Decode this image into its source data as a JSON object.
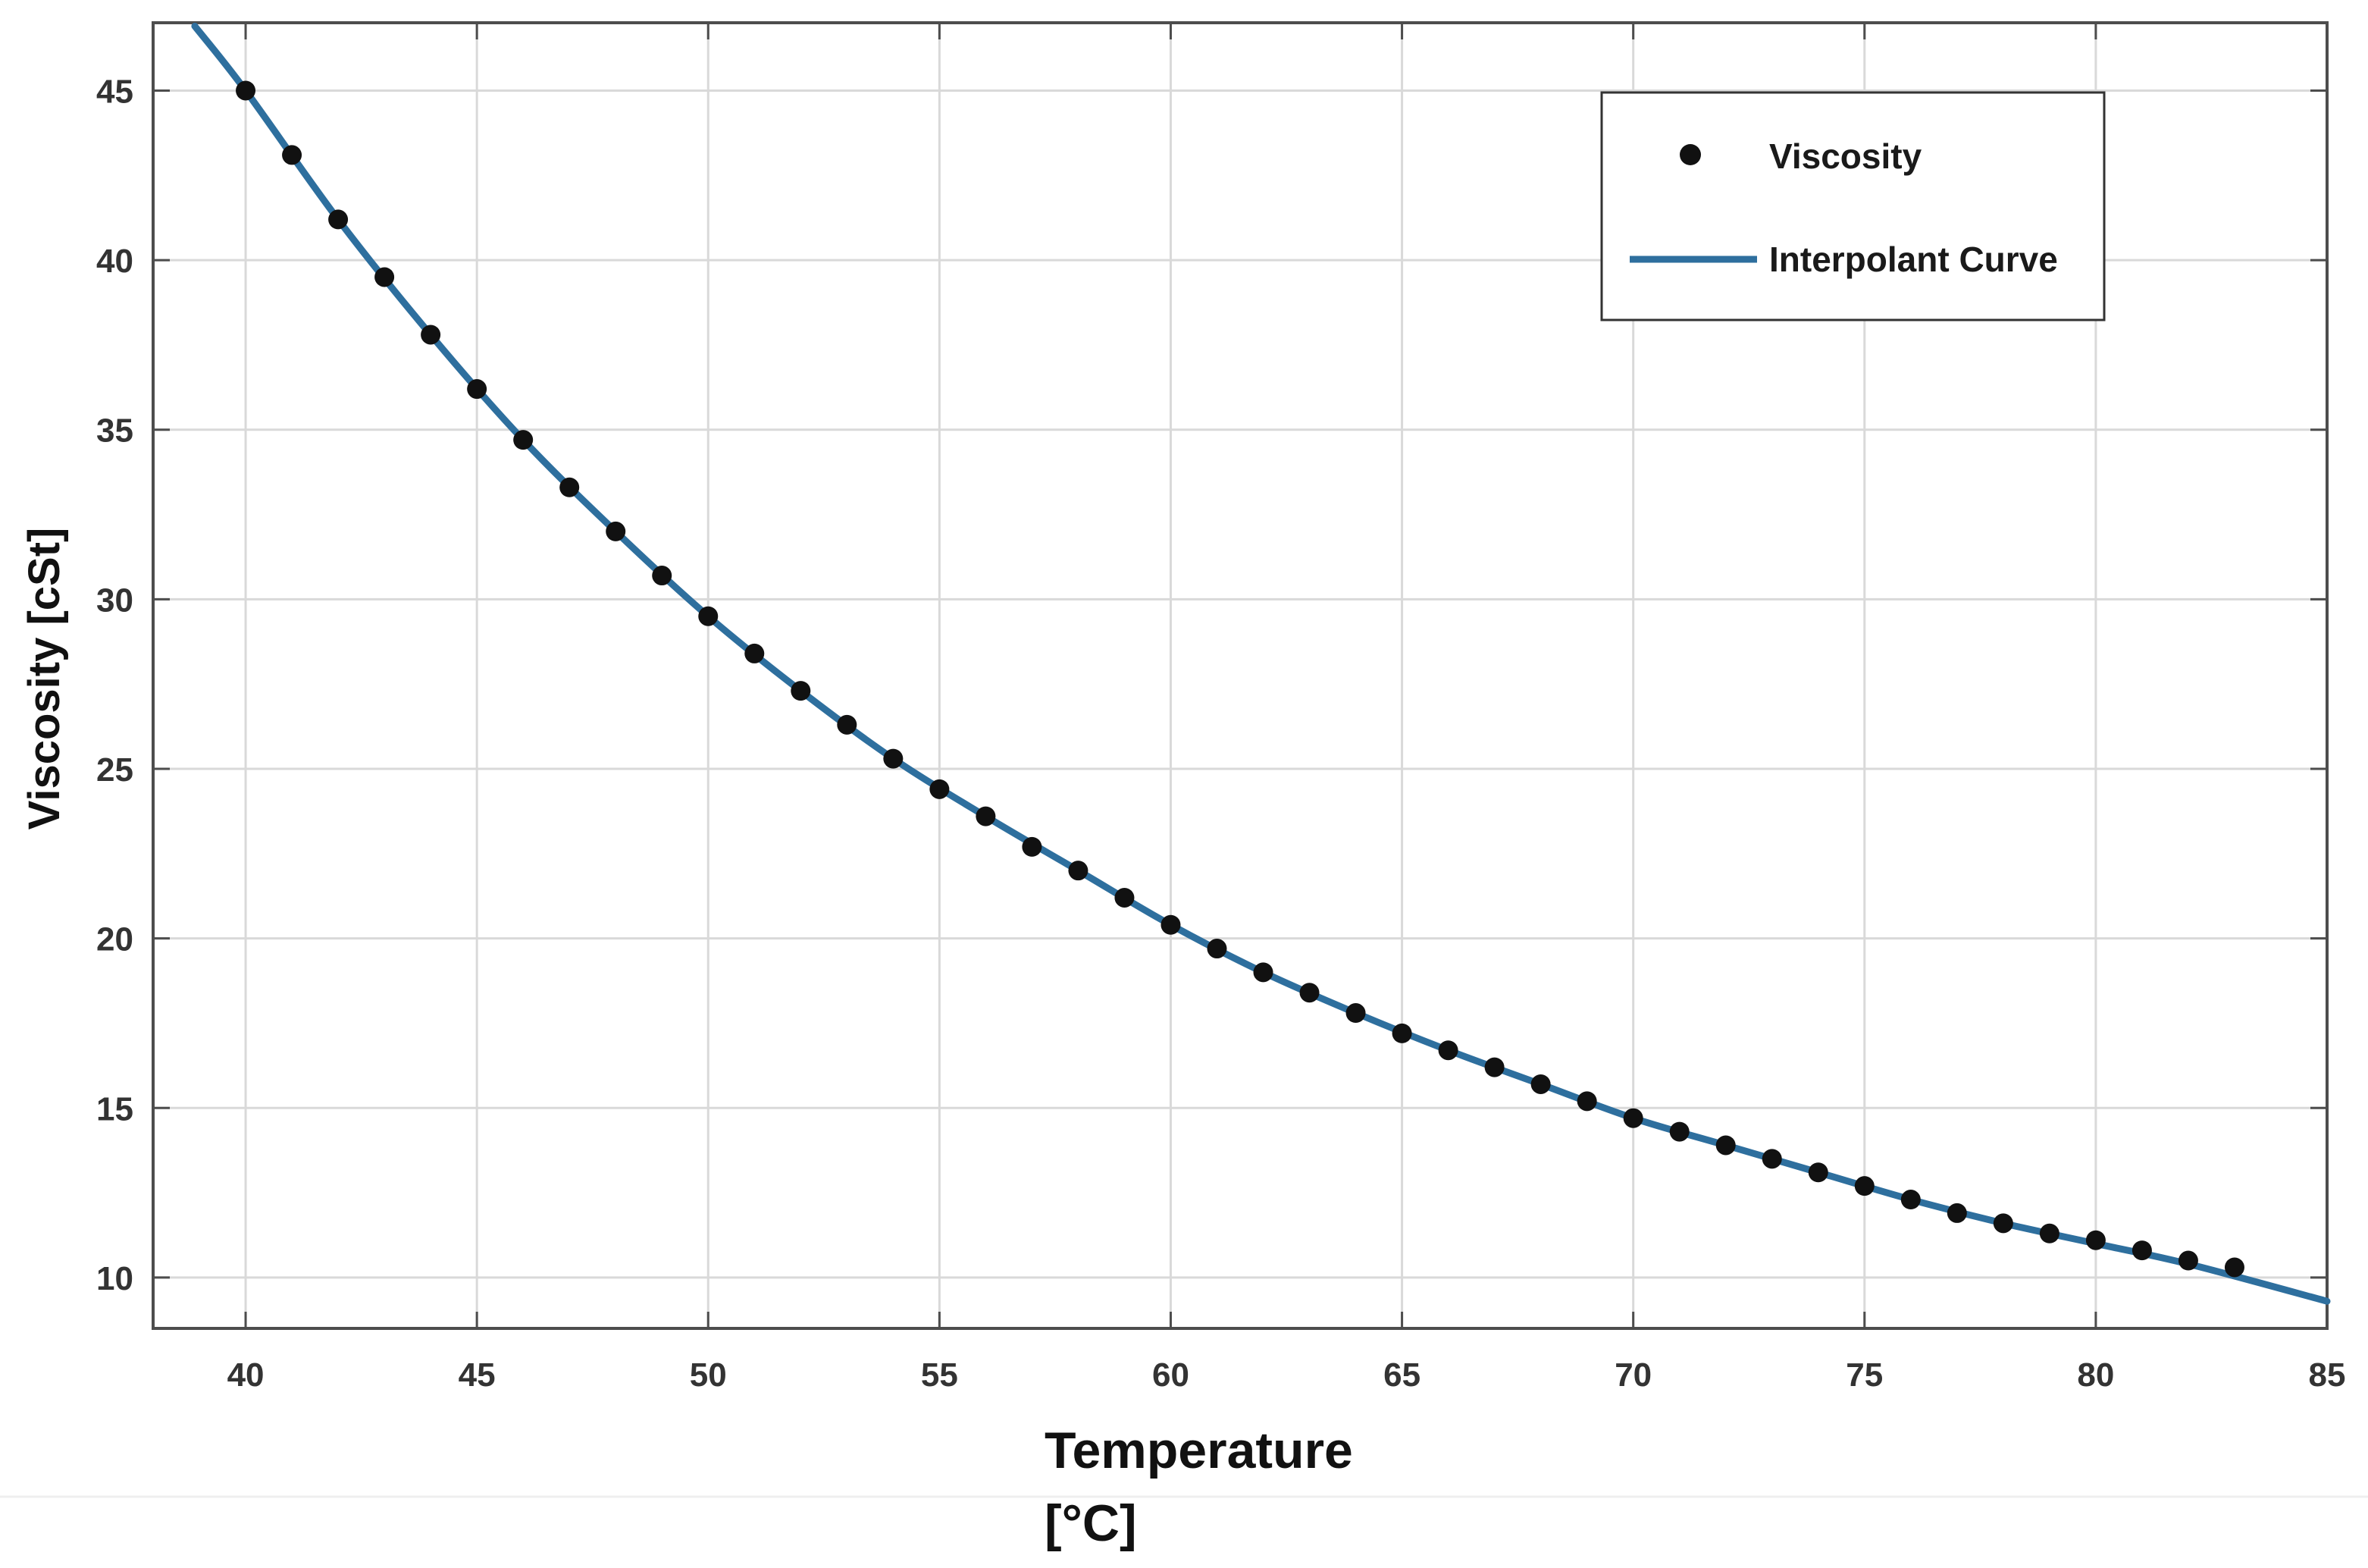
{
  "chart_data": {
    "type": "scatter",
    "title": "",
    "xlabel_line1": "Temperature",
    "xlabel_line2": "[°C]",
    "ylabel": "Viscosity [cSt]",
    "xlim": [
      38,
      85
    ],
    "ylim": [
      8.5,
      47
    ],
    "xticks": [
      40,
      45,
      50,
      55,
      60,
      65,
      70,
      75,
      80,
      85
    ],
    "yticks": [
      10,
      15,
      20,
      25,
      30,
      35,
      40,
      45
    ],
    "grid": true,
    "legend_position": "top-right",
    "colors": {
      "points": "#111111",
      "curve": "#2e6f9e",
      "grid": "#d9d9d9",
      "axes": "#4d4d4d"
    },
    "series": [
      {
        "name": "Viscosity",
        "kind": "markers",
        "x": [
          40,
          41,
          42,
          43,
          44,
          45,
          46,
          47,
          48,
          49,
          50,
          51,
          52,
          53,
          54,
          55,
          56,
          57,
          58,
          59,
          60,
          61,
          62,
          63,
          64,
          65,
          66,
          67,
          68,
          69,
          70,
          71,
          72,
          73,
          74,
          75,
          76,
          77,
          78,
          79,
          80,
          81,
          82,
          83
        ],
        "y": [
          45.0,
          43.1,
          41.2,
          39.5,
          37.8,
          36.2,
          34.7,
          33.3,
          32.0,
          30.7,
          29.5,
          28.4,
          27.3,
          26.3,
          25.3,
          24.4,
          23.6,
          22.7,
          22.0,
          21.2,
          20.4,
          19.7,
          19.0,
          18.4,
          17.8,
          17.2,
          16.7,
          16.2,
          15.7,
          15.2,
          14.7,
          14.3,
          13.9,
          13.5,
          13.1,
          12.7,
          12.3,
          11.9,
          11.6,
          11.3,
          11.1,
          10.8,
          10.5,
          10.3
        ]
      },
      {
        "name": "Interpolant Curve",
        "kind": "line",
        "x": [
          38.9,
          40,
          42,
          44,
          46,
          48,
          50,
          52,
          54,
          56,
          58,
          60,
          62,
          64,
          66,
          68,
          70,
          72,
          74,
          76,
          78,
          80,
          82,
          85
        ],
        "y": [
          46.9,
          45.0,
          41.2,
          37.8,
          34.7,
          32.0,
          29.5,
          27.3,
          25.3,
          23.6,
          22.0,
          20.4,
          19.0,
          17.8,
          16.7,
          15.7,
          14.7,
          13.9,
          13.1,
          12.3,
          11.6,
          11.0,
          10.4,
          9.3
        ]
      }
    ]
  }
}
